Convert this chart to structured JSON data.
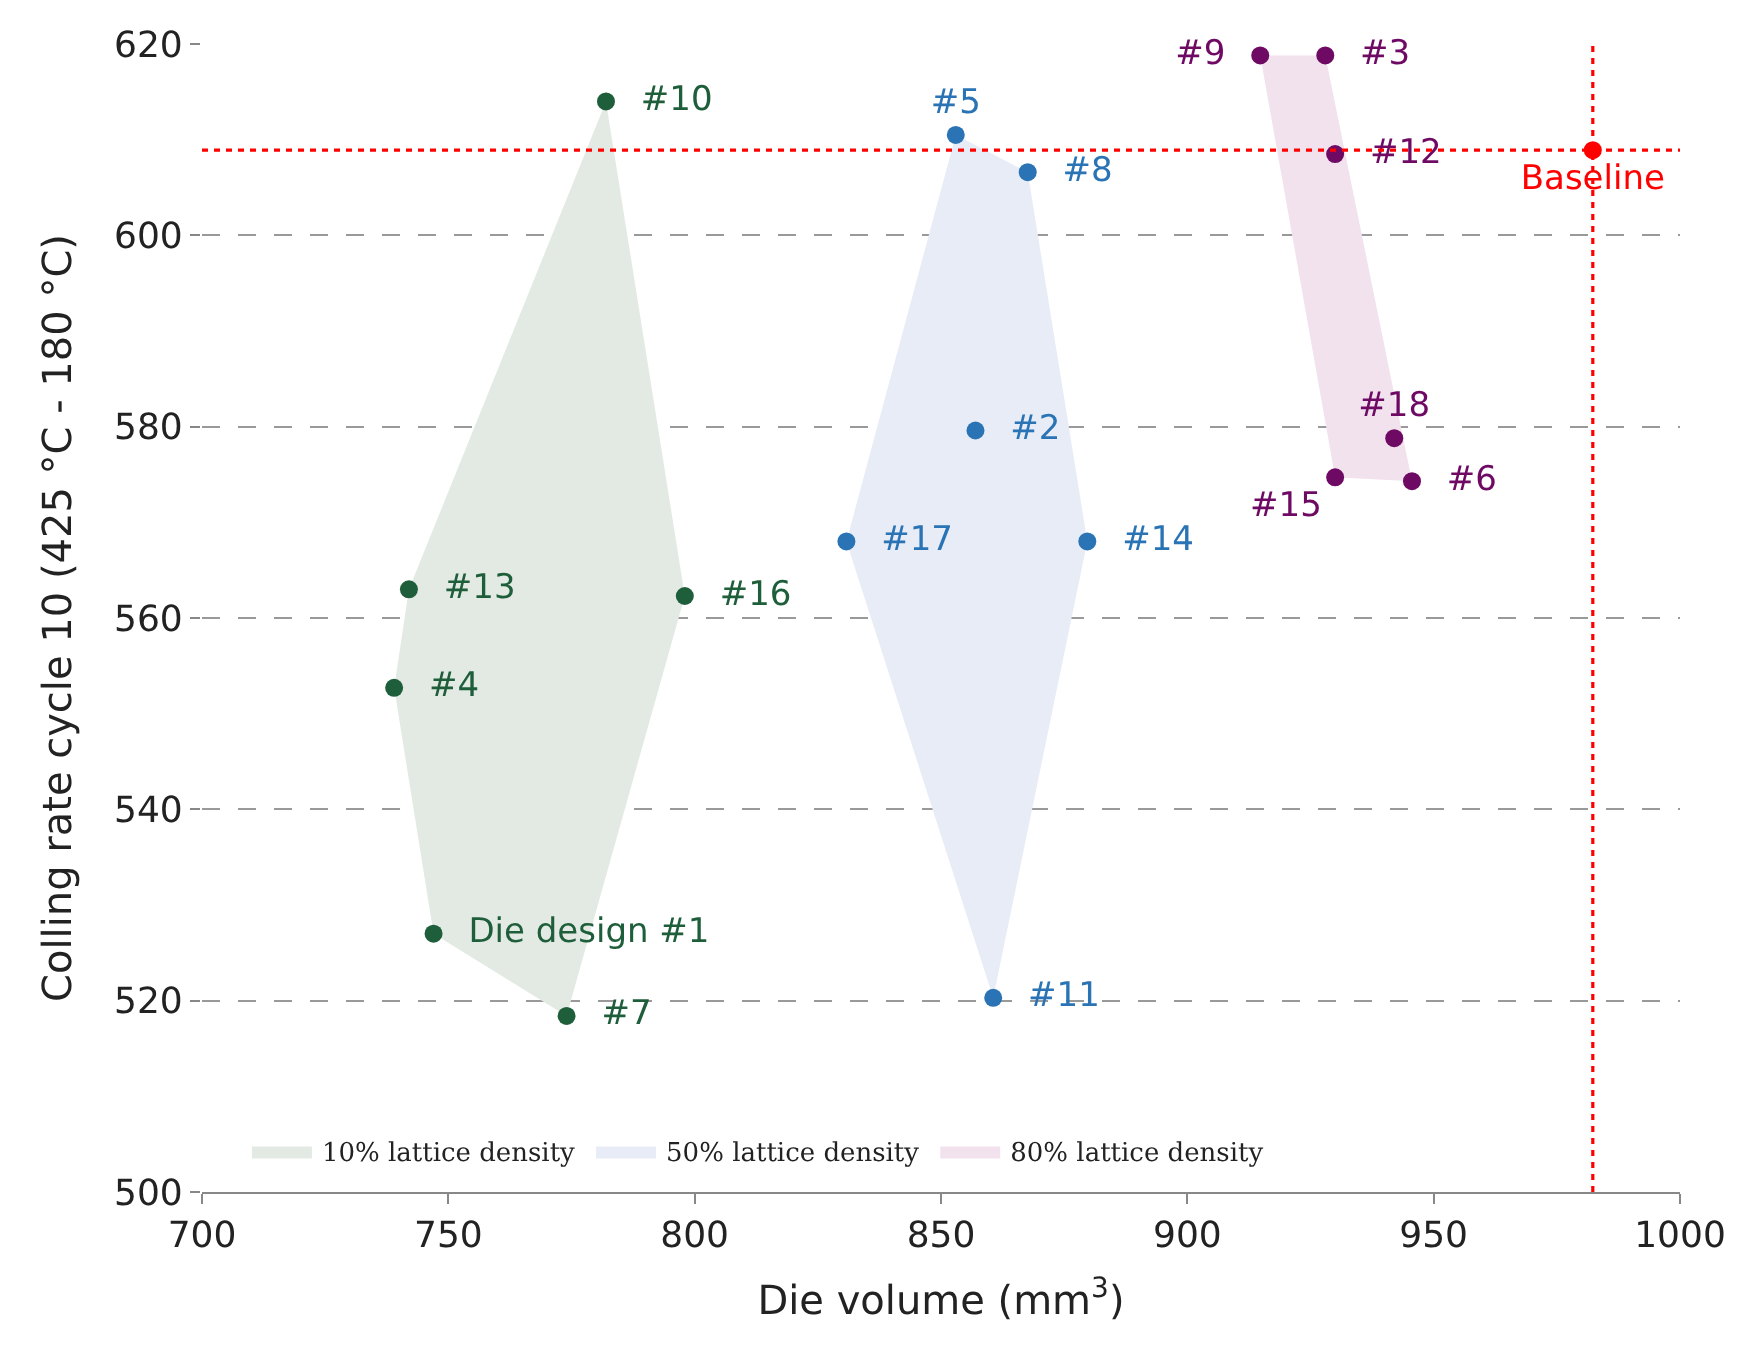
{
  "chart_data": {
    "type": "scatter",
    "xlabel": "Die volume (mm$^{3}$)",
    "ylabel": "Colling rate cycle 10 (425 °C - 180 °C)",
    "xlim": [
      700,
      1000
    ],
    "xticks": [
      700,
      750,
      800,
      850,
      900,
      950,
      1000
    ],
    "ylim": [
      500,
      620
    ],
    "yticks": [
      500,
      520,
      540,
      560,
      580,
      600,
      620
    ],
    "grid": "y",
    "marker": "circle",
    "legend": "bottom left",
    "series": [
      {
        "type": "area",
        "marker": "none",
        "name": "10% lattice density",
        "color": "#e3eae3",
        "x": [
          782,
          798,
          774,
          747,
          739,
          742
        ],
        "values": [
          614,
          562.3,
          518.4,
          527,
          552.7,
          563
        ]
      },
      {
        "type": "area",
        "marker": "none",
        "name": "50% lattice density",
        "color": "#e7ecf6",
        "x": [
          853,
          867.6,
          879.7,
          860.6,
          830.8
        ],
        "values": [
          610.5,
          606.6,
          568,
          520.3,
          568
        ]
      },
      {
        "type": "area",
        "marker": "none",
        "name": "80% lattice density",
        "color": "#f1e2ee",
        "x": [
          914.8,
          928,
          945.6,
          930
        ],
        "values": [
          618.8,
          618.8,
          574.3,
          574.7
        ]
      },
      {
        "name": "#10",
        "color": "#1e5e3a",
        "x": [
          782
        ],
        "values": [
          614
        ]
      },
      {
        "name": "#13",
        "color": "#1e5e3a",
        "x": [
          742
        ],
        "values": [
          563
        ]
      },
      {
        "name": "#4",
        "color": "#1e5e3a",
        "x": [
          739
        ],
        "values": [
          552.7
        ]
      },
      {
        "name": "#16",
        "color": "#1e5e3a",
        "x": [
          798
        ],
        "values": [
          562.3
        ]
      },
      {
        "name": "Die design #1",
        "color": "#1e5e3a",
        "x": [
          747
        ],
        "values": [
          527
        ]
      },
      {
        "name": "#7",
        "color": "#1e5e3a",
        "x": [
          774
        ],
        "values": [
          518.4
        ]
      },
      {
        "name": "#5",
        "color": "#2a74b5",
        "x": [
          853
        ],
        "values": [
          610.5
        ]
      },
      {
        "name": "#8",
        "color": "#2a74b5",
        "x": [
          867.6
        ],
        "values": [
          606.6
        ]
      },
      {
        "name": "#2",
        "color": "#2a74b5",
        "x": [
          857
        ],
        "values": [
          579.6
        ]
      },
      {
        "name": "#17",
        "color": "#2a74b5",
        "x": [
          830.8
        ],
        "values": [
          568
        ]
      },
      {
        "name": "#14",
        "color": "#2a74b5",
        "x": [
          879.7
        ],
        "values": [
          568
        ]
      },
      {
        "name": "#11",
        "color": "#2a74b5",
        "x": [
          860.6
        ],
        "values": [
          520.3
        ]
      },
      {
        "name": "#9",
        "color": "#6e0a64",
        "x": [
          914.8
        ],
        "values": [
          618.8
        ]
      },
      {
        "name": "#3",
        "color": "#6e0a64",
        "x": [
          928
        ],
        "values": [
          618.8
        ]
      },
      {
        "name": "#12",
        "color": "#6e0a64",
        "x": [
          930
        ],
        "values": [
          608.5
        ]
      },
      {
        "name": "#18",
        "color": "#6e0a64",
        "x": [
          942
        ],
        "values": [
          578.8
        ]
      },
      {
        "name": "#15",
        "color": "#6e0a64",
        "x": [
          930
        ],
        "values": [
          574.7
        ]
      },
      {
        "name": "#6",
        "color": "#6e0a64",
        "x": [
          945.6
        ],
        "values": [
          574.3
        ]
      },
      {
        "name": "Baseline",
        "color": "#ff0000",
        "x": [
          982.3
        ],
        "values": [
          608.9
        ]
      }
    ],
    "ref_lines": [
      {
        "axis": "x",
        "value": 982.3,
        "color": "#ff0000",
        "line_style": "dotted"
      },
      {
        "axis": "y",
        "value": 608.9,
        "color": "#ff0000",
        "line_style": "dotted"
      }
    ]
  }
}
